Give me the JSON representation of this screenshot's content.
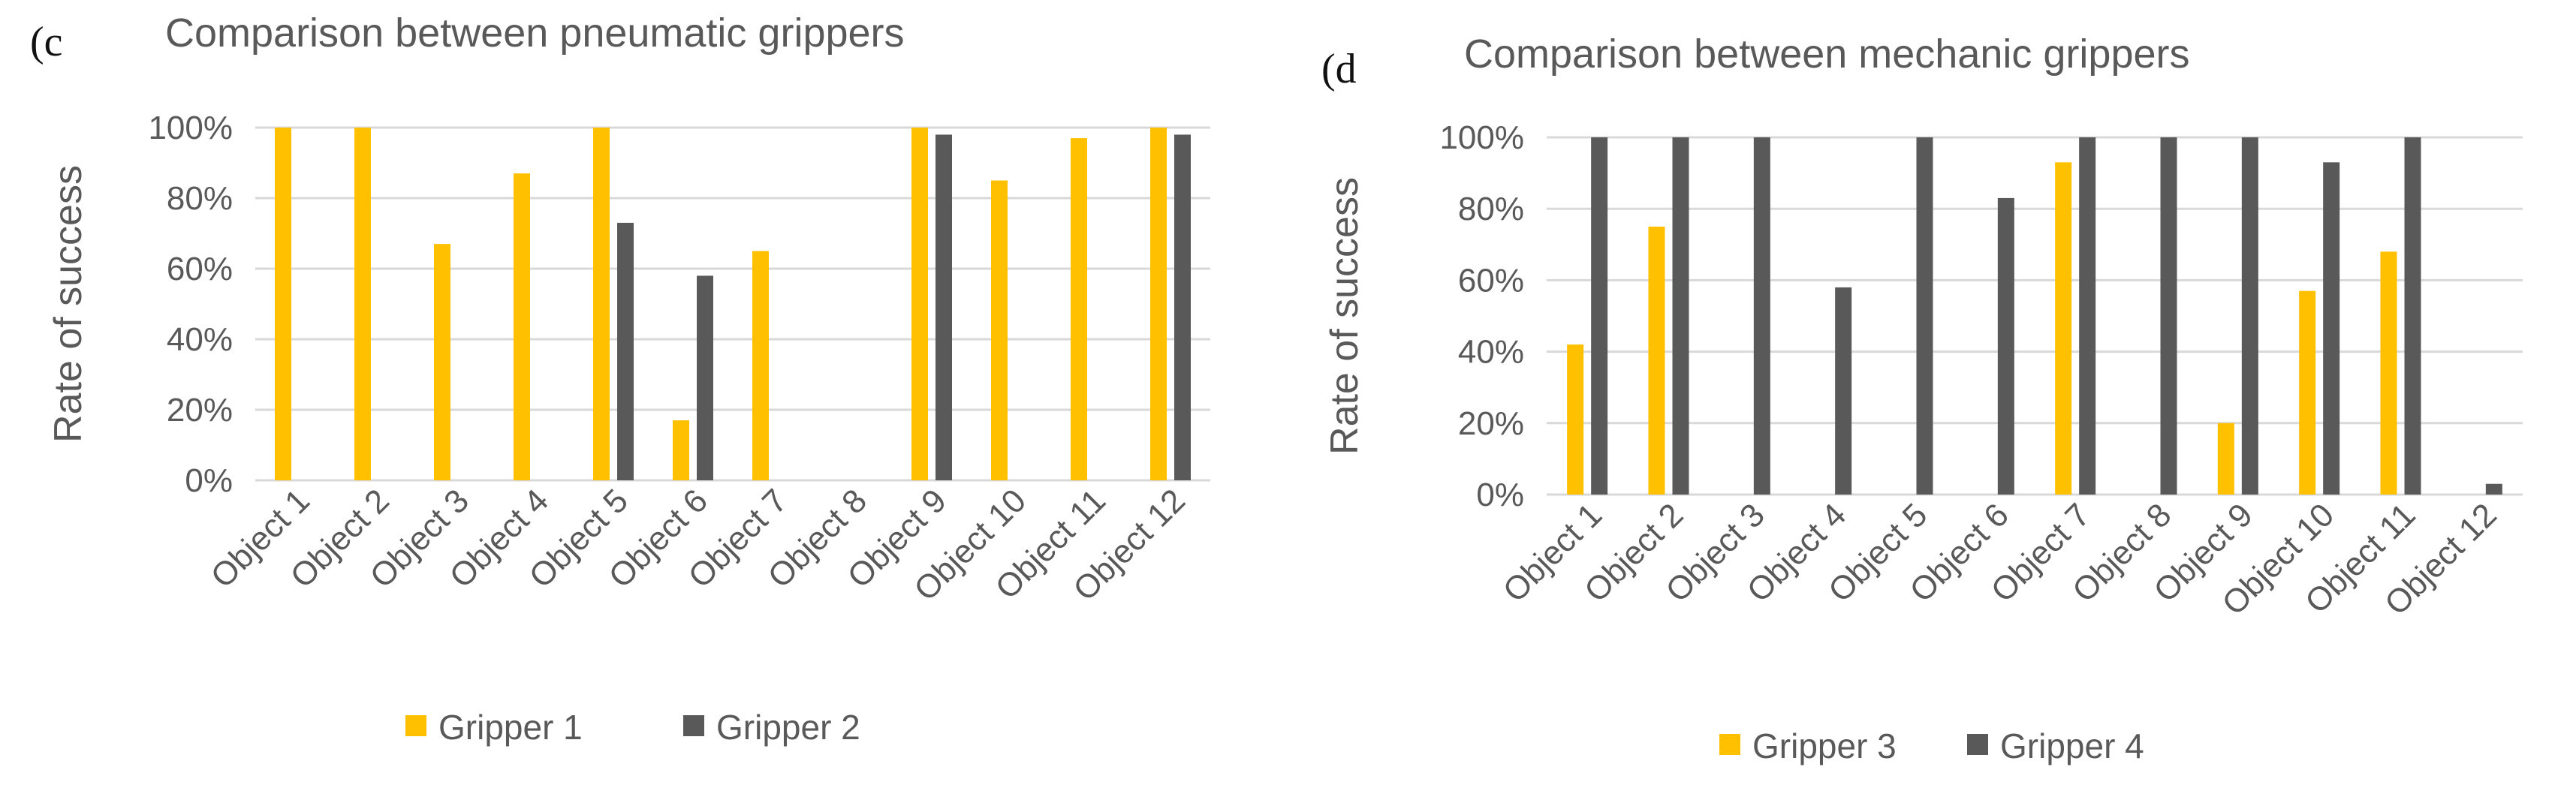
{
  "chart_data": [
    {
      "type": "bar",
      "panel_label": "(c",
      "title": "Comparison between pneumatic grippers",
      "xlabel": "",
      "ylabel": "Rate of success",
      "ylim": [
        0,
        100
      ],
      "yticks": [
        "0%",
        "20%",
        "40%",
        "60%",
        "80%",
        "100%"
      ],
      "grid": true,
      "legend_position": "bottom",
      "categories": [
        "Object 1",
        "Object 2",
        "Object 3",
        "Object 4",
        "Object 5",
        "Object 6",
        "Object 7",
        "Object 8",
        "Object 9",
        "Object 10",
        "Object 11",
        "Object 12"
      ],
      "series": [
        {
          "name": "Gripper 1",
          "color": "#FFC000",
          "values": [
            100,
            100,
            67,
            87,
            100,
            17,
            65,
            0,
            100,
            85,
            97,
            100
          ]
        },
        {
          "name": "Gripper 2",
          "color": "#595959",
          "values": [
            0,
            0,
            0,
            0,
            73,
            58,
            0,
            0,
            98,
            0,
            0,
            98
          ]
        }
      ]
    },
    {
      "type": "bar",
      "panel_label": "(d",
      "title": "Comparison between mechanic grippers",
      "xlabel": "",
      "ylabel": "Rate of success",
      "ylim": [
        0,
        100
      ],
      "yticks": [
        "0%",
        "20%",
        "40%",
        "60%",
        "80%",
        "100%"
      ],
      "grid": true,
      "legend_position": "bottom",
      "categories": [
        "Object 1",
        "Object 2",
        "Object 3",
        "Object 4",
        "Object 5",
        "Object 6",
        "Object 7",
        "Object 8",
        "Object 9",
        "Object 10",
        "Object 11",
        "Object 12"
      ],
      "series": [
        {
          "name": "Gripper 3",
          "color": "#FFC000",
          "values": [
            42,
            75,
            0,
            0,
            0,
            0,
            93,
            0,
            20,
            57,
            68,
            0
          ]
        },
        {
          "name": "Gripper 4",
          "color": "#595959",
          "values": [
            100,
            100,
            100,
            58,
            100,
            83,
            100,
            100,
            100,
            93,
            100,
            3
          ]
        }
      ]
    }
  ]
}
